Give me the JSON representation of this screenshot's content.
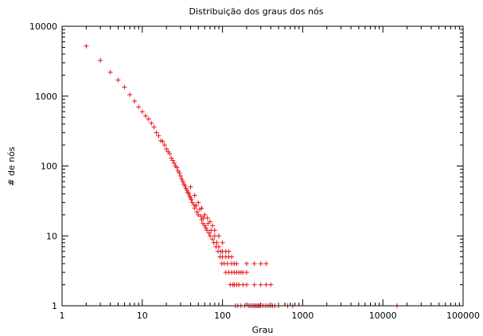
{
  "chart_data": {
    "type": "scatter",
    "title": "Distribuição dos graus dos nós",
    "xlabel": "Grau",
    "ylabel": "# de nós",
    "xscale": "log",
    "yscale": "log",
    "xlim": [
      1,
      100000
    ],
    "ylim": [
      1,
      10000
    ],
    "grid": false,
    "legend": "none",
    "marker": "+",
    "color": "#e8141b",
    "xticks": [
      1,
      10,
      100,
      1000,
      10000,
      100000
    ],
    "xtick_labels": [
      "1",
      "10",
      "100",
      "1000",
      "10000",
      "100000"
    ],
    "yticks": [
      1,
      10,
      100,
      1000,
      10000
    ],
    "ytick_labels": [
      "1",
      "10",
      "100",
      "1000",
      "10000"
    ],
    "points": [
      [
        2,
        5200
      ],
      [
        3,
        3250
      ],
      [
        4,
        2200
      ],
      [
        5,
        1700
      ],
      [
        6,
        1350
      ],
      [
        7,
        1050
      ],
      [
        8,
        850
      ],
      [
        9,
        700
      ],
      [
        10,
        600
      ],
      [
        11,
        520
      ],
      [
        12,
        470
      ],
      [
        13,
        410
      ],
      [
        14,
        360
      ],
      [
        15,
        300
      ],
      [
        16,
        270
      ],
      [
        17,
        230
      ],
      [
        18,
        225
      ],
      [
        19,
        200
      ],
      [
        20,
        175
      ],
      [
        21,
        160
      ],
      [
        22,
        150
      ],
      [
        23,
        130
      ],
      [
        24,
        120
      ],
      [
        25,
        110
      ],
      [
        26,
        100
      ],
      [
        27,
        95
      ],
      [
        28,
        85
      ],
      [
        29,
        80
      ],
      [
        30,
        72
      ],
      [
        31,
        65
      ],
      [
        32,
        60
      ],
      [
        33,
        55
      ],
      [
        34,
        52
      ],
      [
        35,
        48
      ],
      [
        36,
        45
      ],
      [
        37,
        42
      ],
      [
        38,
        40
      ],
      [
        39,
        37
      ],
      [
        40,
        35
      ],
      [
        41,
        33
      ],
      [
        42,
        30
      ],
      [
        44,
        28
      ],
      [
        45,
        25
      ],
      [
        47,
        27
      ],
      [
        48,
        22
      ],
      [
        50,
        20
      ],
      [
        52,
        24
      ],
      [
        54,
        19
      ],
      [
        55,
        17
      ],
      [
        57,
        15
      ],
      [
        58,
        18
      ],
      [
        60,
        14
      ],
      [
        62,
        13
      ],
      [
        64,
        12
      ],
      [
        66,
        15
      ],
      [
        68,
        11
      ],
      [
        70,
        10
      ],
      [
        72,
        12
      ],
      [
        75,
        9
      ],
      [
        78,
        8
      ],
      [
        80,
        10
      ],
      [
        83,
        7
      ],
      [
        85,
        8
      ],
      [
        88,
        6
      ],
      [
        90,
        7
      ],
      [
        93,
        5
      ],
      [
        95,
        6
      ],
      [
        98,
        4
      ],
      [
        100,
        5
      ],
      [
        105,
        4
      ],
      [
        110,
        3
      ],
      [
        115,
        4
      ],
      [
        120,
        3
      ],
      [
        125,
        2
      ],
      [
        130,
        3
      ],
      [
        135,
        2
      ],
      [
        140,
        2
      ],
      [
        145,
        1
      ],
      [
        150,
        2
      ],
      [
        155,
        1
      ],
      [
        160,
        2
      ],
      [
        170,
        1
      ],
      [
        180,
        2
      ],
      [
        190,
        1
      ],
      [
        200,
        2
      ],
      [
        210,
        1
      ],
      [
        220,
        1
      ],
      [
        230,
        1
      ],
      [
        240,
        1
      ],
      [
        250,
        1
      ],
      [
        260,
        1
      ],
      [
        270,
        1
      ],
      [
        280,
        1
      ],
      [
        290,
        1
      ],
      [
        300,
        1
      ],
      [
        320,
        1
      ],
      [
        340,
        1
      ],
      [
        360,
        1
      ],
      [
        380,
        1
      ],
      [
        400,
        1
      ],
      [
        420,
        1
      ],
      [
        450,
        1
      ],
      [
        500,
        1
      ],
      [
        650,
        1
      ],
      [
        750,
        1
      ],
      [
        15000,
        1
      ],
      [
        40,
        50
      ],
      [
        45,
        38
      ],
      [
        50,
        30
      ],
      [
        55,
        25
      ],
      [
        60,
        20
      ],
      [
        65,
        18
      ],
      [
        70,
        16
      ],
      [
        75,
        14
      ],
      [
        80,
        12
      ],
      [
        90,
        10
      ],
      [
        100,
        8
      ],
      [
        110,
        6
      ],
      [
        120,
        5
      ],
      [
        130,
        4
      ],
      [
        140,
        3
      ],
      [
        150,
        3
      ],
      [
        160,
        3
      ],
      [
        170,
        3
      ],
      [
        180,
        3
      ],
      [
        200,
        3
      ],
      [
        250,
        2
      ],
      [
        300,
        2
      ],
      [
        350,
        2
      ],
      [
        400,
        2
      ],
      [
        100,
        6
      ],
      [
        110,
        5
      ],
      [
        120,
        6
      ],
      [
        130,
        5
      ],
      [
        140,
        4
      ],
      [
        150,
        4
      ],
      [
        200,
        4
      ],
      [
        250,
        4
      ],
      [
        300,
        4
      ],
      [
        350,
        4
      ]
    ]
  }
}
